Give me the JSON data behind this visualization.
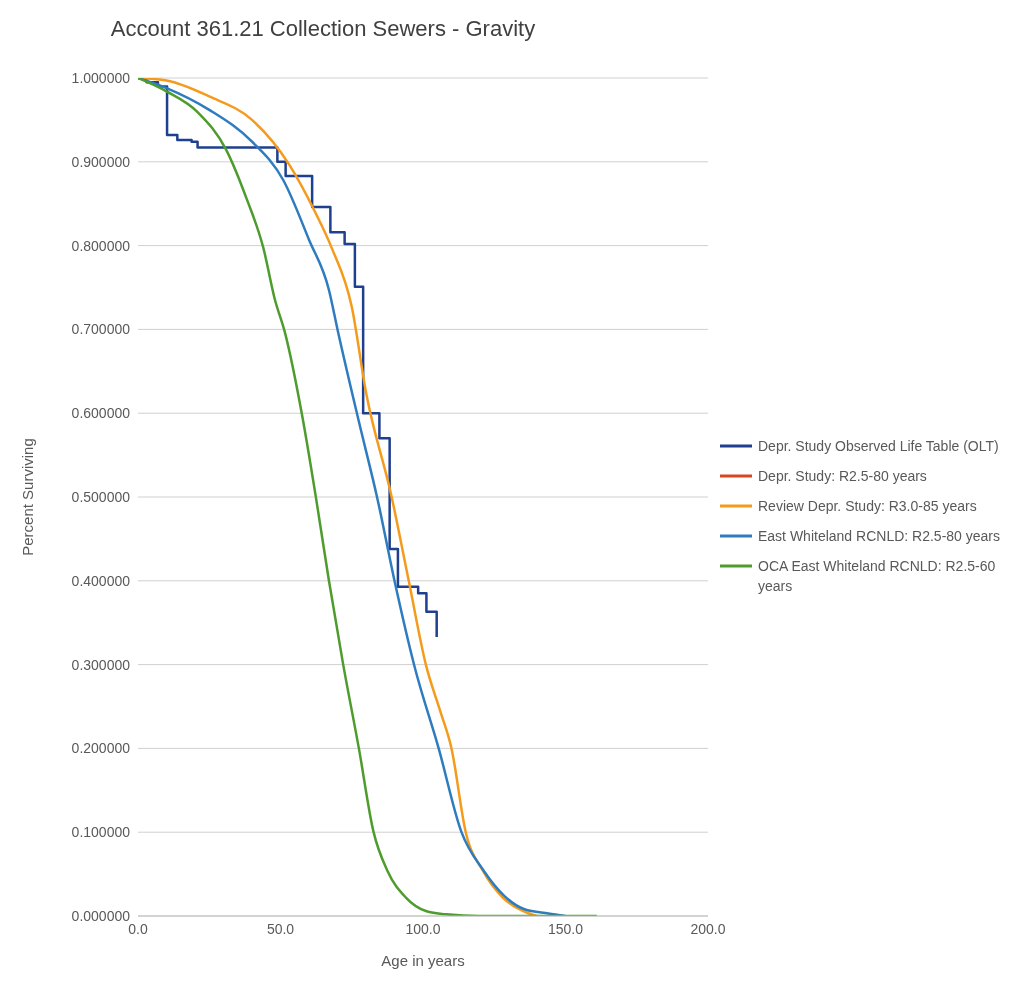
{
  "chart_data": {
    "type": "line",
    "title": "Account 361.21 Collection Sewers - Gravity",
    "xlabel": "Age in years",
    "ylabel": "Percent Surviving",
    "xlim": [
      0,
      200
    ],
    "xticks": [
      {
        "value": 0,
        "label": "0.0"
      },
      {
        "value": 50,
        "label": "50.0"
      },
      {
        "value": 100,
        "label": "100.0"
      },
      {
        "value": 150,
        "label": "150.0"
      },
      {
        "value": 200,
        "label": "200.0"
      }
    ],
    "ylim": [
      0,
      1
    ],
    "yticks": [
      {
        "value": 0,
        "label": "0.000000"
      },
      {
        "value": 0.1,
        "label": "0.100000"
      },
      {
        "value": 0.2,
        "label": "0.200000"
      },
      {
        "value": 0.3,
        "label": "0.300000"
      },
      {
        "value": 0.4,
        "label": "0.400000"
      },
      {
        "value": 0.5,
        "label": "0.500000"
      },
      {
        "value": 0.6,
        "label": "0.600000"
      },
      {
        "value": 0.7,
        "label": "0.700000"
      },
      {
        "value": 0.8,
        "label": "0.800000"
      },
      {
        "value": 0.9,
        "label": "0.900000"
      },
      {
        "value": 1,
        "label": "1.000000"
      }
    ],
    "grid": "y",
    "legend": "right",
    "marker": "none",
    "line_style": "solid",
    "series": [
      {
        "name": "Depr. Study Observed Life Table (OLT)",
        "type": "step",
        "color": "#1f3f8f",
        "x": [
          0,
          3,
          7,
          10.2,
          13.8,
          18.8,
          20.9,
          48.9,
          51.8,
          61.1,
          67.5,
          72.5,
          76.1,
          79,
          84.7,
          88.3,
          91.2,
          98.3,
          101.2,
          104.8
        ],
        "values": [
          1,
          0.995,
          0.99,
          0.932,
          0.926,
          0.924,
          0.917,
          0.9,
          0.883,
          0.846,
          0.816,
          0.802,
          0.751,
          0.6,
          0.57,
          0.438,
          0.393,
          0.385,
          0.363,
          0.333
        ]
      },
      {
        "name": "Depr. Study: R2.5-80 years",
        "color": "#d9461b"
      },
      {
        "name": "Review Depr. Study: R3.0-85 years",
        "color": "#f59b1c",
        "x": [
          0,
          10,
          25,
          40,
          53,
          62,
          68,
          75,
          80,
          89,
          95,
          101,
          106,
          110,
          115,
          121,
          128,
          135,
          140
        ],
        "values": [
          1,
          0.997,
          0.978,
          0.95,
          0.897,
          0.841,
          0.797,
          0.727,
          0.625,
          0.5,
          0.4,
          0.3,
          0.245,
          0.2,
          0.1,
          0.054,
          0.022,
          0.006,
          0
        ]
      },
      {
        "name": "East Whiteland RCNLD: R2.5-80 years",
        "color": "#2e7cc0",
        "x": [
          0,
          10,
          25,
          40,
          51,
          60,
          67,
          70,
          77.5,
          84,
          90,
          97,
          105.5,
          113.4,
          121.3,
          128.5,
          135.6,
          144,
          150
        ],
        "values": [
          1,
          0.988,
          0.962,
          0.924,
          0.878,
          0.807,
          0.747,
          0.7,
          0.59,
          0.498,
          0.4,
          0.298,
          0.2,
          0.101,
          0.054,
          0.024,
          0.008,
          0.003,
          0
        ]
      },
      {
        "name": "OCA East Whiteland RCNLD: R2.5-60 years",
        "color": "#4e9c2e",
        "x": [
          0,
          10,
          21,
          31,
          38,
          44,
          48,
          51.5,
          57.5,
          62.5,
          67,
          72,
          77.5,
          82.6,
          87.5,
          94,
          101,
          108,
          120,
          140,
          161
        ],
        "values": [
          1,
          0.984,
          0.959,
          0.914,
          0.857,
          0.797,
          0.736,
          0.697,
          0.599,
          0.498,
          0.4,
          0.3,
          0.2,
          0.101,
          0.054,
          0.022,
          0.006,
          0.002,
          0,
          0,
          0
        ]
      }
    ]
  }
}
